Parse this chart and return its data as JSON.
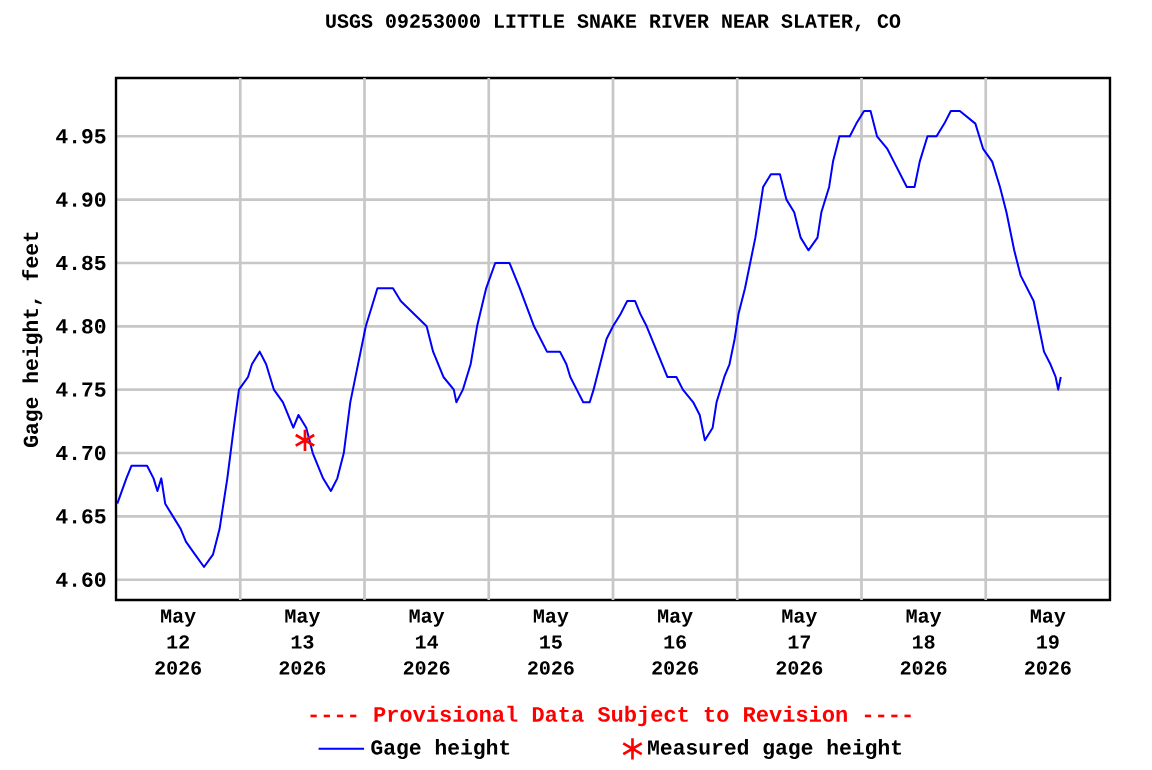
{
  "chart_data": {
    "type": "line",
    "title": "USGS 09253000 LITTLE SNAKE RIVER NEAR SLATER, CO",
    "ylabel": "Gage height, feet",
    "annotations": [
      "---- Provisional Data Subject to Revision ----"
    ],
    "xlim": [
      "2026-05-12",
      "2026-05-20"
    ],
    "xticks": [
      {
        "value": "2026-05-12T12:00",
        "label": "May 12 2026"
      },
      {
        "value": "2026-05-13T12:00",
        "label": "May 13 2026"
      },
      {
        "value": "2026-05-14T12:00",
        "label": "May 14 2026"
      },
      {
        "value": "2026-05-15T12:00",
        "label": "May 15 2026"
      },
      {
        "value": "2026-05-16T12:00",
        "label": "May 16 2026"
      },
      {
        "value": "2026-05-17T12:00",
        "label": "May 17 2026"
      },
      {
        "value": "2026-05-18T12:00",
        "label": "May 18 2026"
      },
      {
        "value": "2026-05-19T12:00",
        "label": "May 19 2026"
      },
      {
        "value": "2026-05-13",
        "label": null
      },
      {
        "value": "2026-05-14",
        "label": null
      },
      {
        "value": "2026-05-15",
        "label": null
      },
      {
        "value": "2026-05-16",
        "label": null
      },
      {
        "value": "2026-05-17",
        "label": null
      },
      {
        "value": "2026-05-18",
        "label": null
      },
      {
        "value": "2026-05-19",
        "label": null
      }
    ],
    "ylim": [
      4.584,
      4.996
    ],
    "yticks": [
      {
        "value": 4.6,
        "label": "4.60"
      },
      {
        "value": 4.65,
        "label": "4.65"
      },
      {
        "value": 4.7,
        "label": "4.70"
      },
      {
        "value": 4.75,
        "label": "4.75"
      },
      {
        "value": 4.8,
        "label": "4.80"
      },
      {
        "value": 4.85,
        "label": "4.85"
      },
      {
        "value": 4.9,
        "label": "4.90"
      },
      {
        "value": 4.95,
        "label": "4.95"
      }
    ],
    "grid": true,
    "legend": "bottom",
    "series": [
      {
        "name": "Gage height",
        "color": "#0000ff",
        "x": [
          "2026-05-12T00:15",
          "2026-05-12T02:00",
          "2026-05-12T03:00",
          "2026-05-12T06:00",
          "2026-05-12T07:15",
          "2026-05-12T08:00",
          "2026-05-12T08:45",
          "2026-05-12T09:30",
          "2026-05-12T11:00",
          "2026-05-12T12:30",
          "2026-05-12T13:30",
          "2026-05-12T15:15",
          "2026-05-12T17:00",
          "2026-05-12T18:45",
          "2026-05-12T20:00",
          "2026-05-12T21:30",
          "2026-05-12T22:45",
          "2026-05-12T23:45",
          "2026-05-13T01:30",
          "2026-05-13T02:15",
          "2026-05-13T03:45",
          "2026-05-13T05:00",
          "2026-05-13T06:30",
          "2026-05-13T08:15",
          "2026-05-13T10:15",
          "2026-05-13T11:15",
          "2026-05-13T12:45",
          "2026-05-13T14:00",
          "2026-05-13T16:00",
          "2026-05-13T17:30",
          "2026-05-13T18:45",
          "2026-05-13T20:00",
          "2026-05-13T21:15",
          "2026-05-13T23:15",
          "2026-05-14T00:15",
          "2026-05-14T01:45",
          "2026-05-14T02:30",
          "2026-05-14T05:30",
          "2026-05-14T07:00",
          "2026-05-14T09:30",
          "2026-05-14T12:00",
          "2026-05-14T13:15",
          "2026-05-14T15:15",
          "2026-05-14T17:15",
          "2026-05-14T17:45",
          "2026-05-14T19:00",
          "2026-05-14T20:30",
          "2026-05-14T21:45",
          "2026-05-14T23:30",
          "2026-05-15T01:15",
          "2026-05-15T04:00",
          "2026-05-15T06:00",
          "2026-05-15T08:45",
          "2026-05-15T11:15",
          "2026-05-15T13:45",
          "2026-05-15T15:00",
          "2026-05-15T15:45",
          "2026-05-15T17:00",
          "2026-05-15T18:15",
          "2026-05-15T19:30",
          "2026-05-15T20:15",
          "2026-05-15T21:30",
          "2026-05-15T22:45",
          "2026-05-16T00:00",
          "2026-05-16T01:30",
          "2026-05-16T02:45",
          "2026-05-16T04:15",
          "2026-05-16T05:15",
          "2026-05-16T06:30",
          "2026-05-16T08:30",
          "2026-05-16T10:30",
          "2026-05-16T12:15",
          "2026-05-16T13:30",
          "2026-05-16T15:30",
          "2026-05-16T16:45",
          "2026-05-16T17:45",
          "2026-05-16T19:15",
          "2026-05-16T20:00",
          "2026-05-16T21:30",
          "2026-05-16T22:30",
          "2026-05-16T23:30",
          "2026-05-17T00:15",
          "2026-05-17T01:30",
          "2026-05-17T02:30",
          "2026-05-17T03:30",
          "2026-05-17T04:15",
          "2026-05-17T05:00",
          "2026-05-17T06:30",
          "2026-05-17T08:15",
          "2026-05-17T09:30",
          "2026-05-17T11:00",
          "2026-05-17T12:15",
          "2026-05-17T13:45",
          "2026-05-17T15:30",
          "2026-05-17T16:15",
          "2026-05-17T17:45",
          "2026-05-17T18:30",
          "2026-05-17T19:45",
          "2026-05-17T21:45",
          "2026-05-17T23:00",
          "2026-05-18T00:30",
          "2026-05-18T01:45",
          "2026-05-18T03:00",
          "2026-05-18T05:00",
          "2026-05-18T06:15",
          "2026-05-18T07:30",
          "2026-05-18T08:45",
          "2026-05-18T10:15",
          "2026-05-18T11:15",
          "2026-05-18T12:45",
          "2026-05-18T14:30",
          "2026-05-18T16:00",
          "2026-05-18T17:15",
          "2026-05-18T19:00",
          "2026-05-18T22:00",
          "2026-05-18T23:30",
          "2026-05-19T01:15",
          "2026-05-19T02:45",
          "2026-05-19T04:00",
          "2026-05-19T05:30",
          "2026-05-19T06:45",
          "2026-05-19T08:00",
          "2026-05-19T09:15",
          "2026-05-19T10:15",
          "2026-05-19T11:15",
          "2026-05-19T12:30",
          "2026-05-19T13:30",
          "2026-05-19T14:00",
          "2026-05-19T14:30"
        ],
        "values": [
          4.66,
          4.68,
          4.69,
          4.69,
          4.68,
          4.67,
          4.68,
          4.66,
          4.65,
          4.64,
          4.63,
          4.62,
          4.61,
          4.62,
          4.64,
          4.68,
          4.72,
          4.75,
          4.76,
          4.77,
          4.78,
          4.77,
          4.75,
          4.74,
          4.72,
          4.73,
          4.72,
          4.7,
          4.68,
          4.67,
          4.68,
          4.7,
          4.74,
          4.78,
          4.8,
          4.82,
          4.83,
          4.83,
          4.82,
          4.81,
          4.8,
          4.78,
          4.76,
          4.75,
          4.74,
          4.75,
          4.77,
          4.8,
          4.83,
          4.85,
          4.85,
          4.83,
          4.8,
          4.78,
          4.78,
          4.77,
          4.76,
          4.75,
          4.74,
          4.74,
          4.75,
          4.77,
          4.79,
          4.8,
          4.81,
          4.82,
          4.82,
          4.81,
          4.8,
          4.78,
          4.76,
          4.76,
          4.75,
          4.74,
          4.73,
          4.71,
          4.72,
          4.74,
          4.76,
          4.77,
          4.79,
          4.81,
          4.83,
          4.85,
          4.87,
          4.89,
          4.91,
          4.92,
          4.92,
          4.9,
          4.89,
          4.87,
          4.86,
          4.87,
          4.89,
          4.91,
          4.93,
          4.95,
          4.95,
          4.96,
          4.97,
          4.97,
          4.95,
          4.94,
          4.93,
          4.92,
          4.91,
          4.91,
          4.93,
          4.95,
          4.95,
          4.96,
          4.97,
          4.97,
          4.96,
          4.94,
          4.93,
          4.91,
          4.89,
          4.86,
          4.84,
          4.83,
          4.82,
          4.8,
          4.78,
          4.77,
          4.76,
          4.75,
          4.76
        ]
      },
      {
        "name": "Measured gage height",
        "type": "scatter",
        "marker": "cross",
        "color": "#ff0000",
        "x": [
          "2026-05-13T12:30"
        ],
        "values": [
          4.71
        ]
      }
    ]
  }
}
